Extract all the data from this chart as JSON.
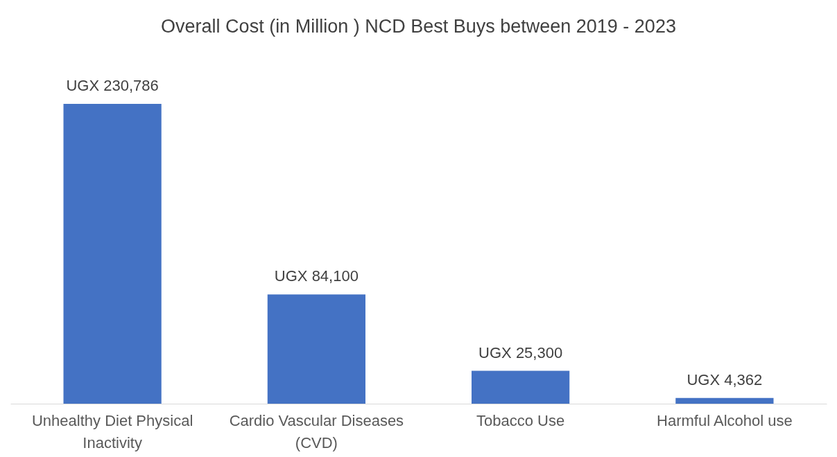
{
  "chart_data": {
    "type": "bar",
    "title": "Overall Cost (in Million ) NCD Best Buys between  2019 - 2023",
    "categories": [
      "Unhealthy Diet Physical Inactivity",
      "Cardio Vascular Diseases (CVD)",
      "Tobacco Use",
      "Harmful Alcohol use"
    ],
    "values": [
      230786,
      84100,
      25300,
      4362
    ],
    "value_labels": [
      "UGX 230,786",
      "UGX 84,100",
      "UGX 25,300",
      "UGX 4,362"
    ],
    "color": "#4472c4",
    "tick_labels": "x",
    "grid": false
  }
}
